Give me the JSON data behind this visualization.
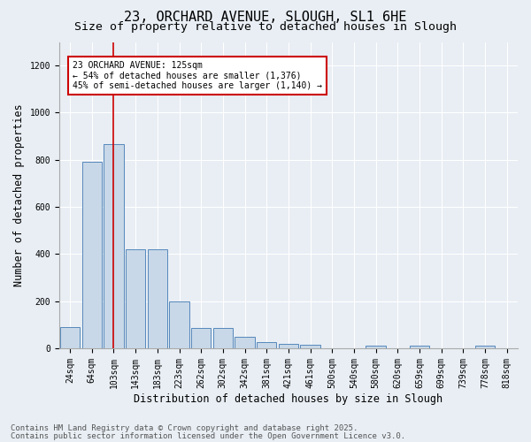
{
  "title_line1": "23, ORCHARD AVENUE, SLOUGH, SL1 6HE",
  "title_line2": "Size of property relative to detached houses in Slough",
  "xlabel": "Distribution of detached houses by size in Slough",
  "ylabel": "Number of detached properties",
  "categories": [
    "24sqm",
    "64sqm",
    "103sqm",
    "143sqm",
    "183sqm",
    "223sqm",
    "262sqm",
    "302sqm",
    "342sqm",
    "381sqm",
    "421sqm",
    "461sqm",
    "500sqm",
    "540sqm",
    "580sqm",
    "620sqm",
    "659sqm",
    "699sqm",
    "739sqm",
    "778sqm",
    "818sqm"
  ],
  "values": [
    90,
    790,
    865,
    420,
    420,
    200,
    85,
    85,
    50,
    25,
    20,
    15,
    0,
    0,
    10,
    0,
    10,
    0,
    0,
    10,
    0
  ],
  "bar_color": "#c8d8e8",
  "bar_edge_color": "#5588bb",
  "ylim": [
    0,
    1300
  ],
  "yticks": [
    0,
    200,
    400,
    600,
    800,
    1000,
    1200
  ],
  "vline_x": 2,
  "vline_color": "#cc0000",
  "annotation_text": "23 ORCHARD AVENUE: 125sqm\n← 54% of detached houses are smaller (1,376)\n45% of semi-detached houses are larger (1,140) →",
  "footer_line1": "Contains HM Land Registry data © Crown copyright and database right 2025.",
  "footer_line2": "Contains public sector information licensed under the Open Government Licence v3.0.",
  "background_color": "#e8eef4",
  "plot_background_color": "#e8eef4",
  "grid_color": "#ffffff",
  "title_fontsize": 11,
  "subtitle_fontsize": 9.5,
  "axis_label_fontsize": 8.5,
  "tick_fontsize": 7,
  "footer_fontsize": 6.5
}
